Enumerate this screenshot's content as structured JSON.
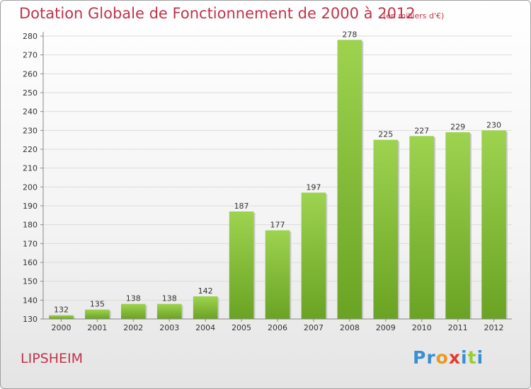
{
  "header": {
    "title": "Dotation Globale de Fonctionnement de 2000 à 2012",
    "unit": "(en milliers d'€)"
  },
  "footer": {
    "commune": "LIPSHEIM",
    "logo_text": "Proxiti"
  },
  "colors": {
    "title": "#c0334a",
    "bar_top": "#9dd34f",
    "bar_bottom": "#6aa323",
    "grid": "#dcdcdc",
    "axis": "#888888"
  },
  "chart_data": {
    "type": "bar",
    "title": "Dotation Globale de Fonctionnement de 2000 à 2012",
    "subtitle": "(en milliers d'€)",
    "xlabel": "",
    "ylabel": "",
    "categories": [
      "2000",
      "2001",
      "2002",
      "2003",
      "2004",
      "2005",
      "2006",
      "2007",
      "2008",
      "2009",
      "2010",
      "2011",
      "2012"
    ],
    "values": [
      132,
      135,
      138,
      138,
      142,
      187,
      177,
      197,
      278,
      225,
      227,
      229,
      230
    ],
    "ylim": [
      130,
      280
    ],
    "yticks": [
      130,
      140,
      150,
      160,
      170,
      180,
      190,
      200,
      210,
      220,
      230,
      240,
      250,
      260,
      270,
      280
    ],
    "grid": true,
    "data_labels": true
  }
}
